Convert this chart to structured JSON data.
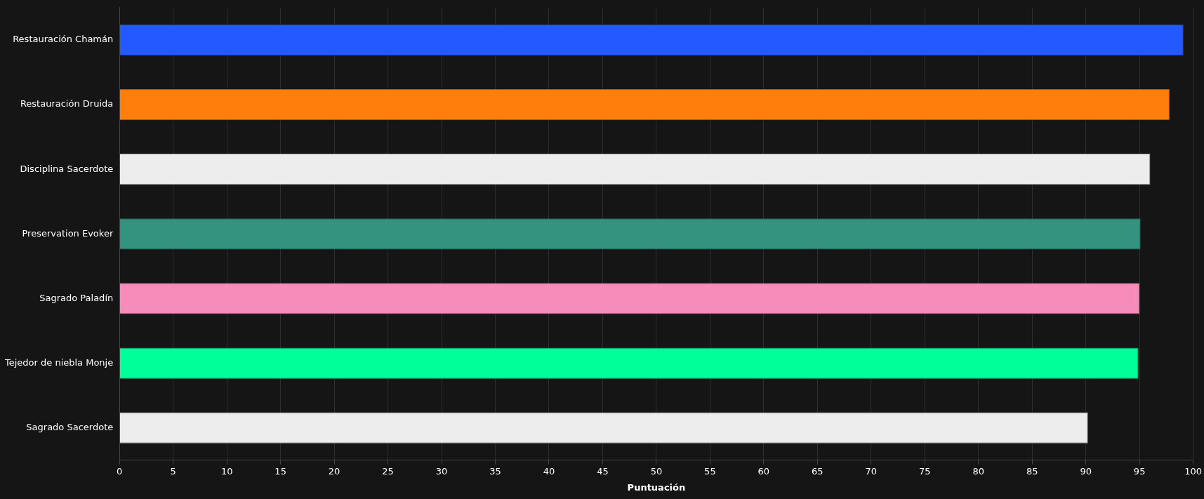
{
  "chart_data": {
    "type": "bar",
    "orientation": "horizontal",
    "xlabel": "Puntuación",
    "categories": [
      "Restauración Chamán",
      "Restauración Druida",
      "Disciplina Sacerdote",
      "Preservation Evoker",
      "Sagrado Paladín",
      "Tejedor de niebla Monje",
      "Sagrado Sacerdote"
    ],
    "values": [
      99.1,
      97.8,
      96.0,
      95.1,
      95.0,
      94.9,
      90.2
    ],
    "colors": [
      "#2459ff",
      "#ff7e0c",
      "#ededed",
      "#33937f",
      "#f58cba",
      "#00ff98",
      "#ededed"
    ],
    "xlim": [
      0,
      100
    ],
    "xticks": [
      0,
      5,
      10,
      15,
      20,
      25,
      30,
      35,
      40,
      45,
      50,
      55,
      60,
      65,
      70,
      75,
      80,
      85,
      90,
      95,
      100
    ],
    "grid": "x",
    "legend": false
  }
}
